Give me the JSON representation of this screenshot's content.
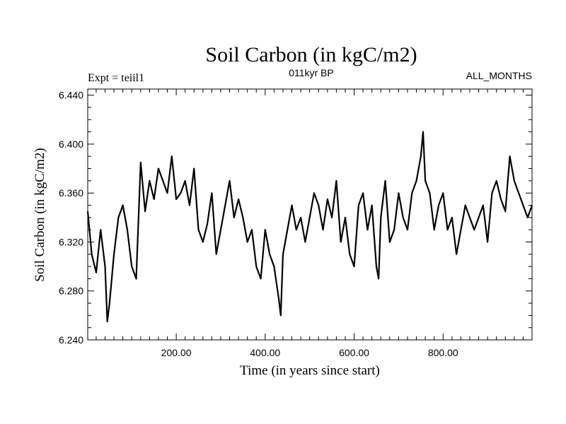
{
  "header": {
    "title": "Soil Carbon (in kgC/m2)",
    "experiment": "Expt = teiil1",
    "period": "011kyr BP",
    "months": "ALL_MONTHS"
  },
  "chart_data": {
    "type": "line",
    "title": "Soil Carbon (in kgC/m2)",
    "xlabel": "Time (in years since start)",
    "ylabel": "Soil Carbon (in kgC/m2)",
    "xlim": [
      1,
      1000
    ],
    "ylim": [
      6.24,
      6.445
    ],
    "x_ticks": [
      200,
      400,
      600,
      800
    ],
    "x_tick_labels": [
      "200.00",
      "400.00",
      "600.00",
      "800.00"
    ],
    "y_ticks": [
      6.24,
      6.28,
      6.32,
      6.36,
      6.4,
      6.44
    ],
    "y_tick_labels": [
      "6.240",
      "6.280",
      "6.320",
      "6.360",
      "6.400",
      "6.440"
    ],
    "grid": false,
    "line_color": "#000000",
    "series": [
      {
        "x": [
          1,
          10,
          20,
          30,
          40,
          45,
          50,
          60,
          70,
          80,
          90,
          100,
          110,
          120,
          130,
          140,
          150,
          160,
          170,
          180,
          190,
          200,
          210,
          220,
          230,
          240,
          250,
          260,
          270,
          280,
          290,
          300,
          310,
          320,
          330,
          340,
          350,
          360,
          370,
          380,
          390,
          400,
          410,
          420,
          430,
          435,
          440,
          450,
          460,
          470,
          480,
          490,
          500,
          510,
          520,
          530,
          540,
          550,
          560,
          570,
          580,
          590,
          600,
          610,
          620,
          630,
          640,
          650,
          655,
          660,
          670,
          680,
          690,
          700,
          710,
          720,
          730,
          740,
          750,
          755,
          760,
          770,
          780,
          790,
          800,
          810,
          820,
          830,
          840,
          850,
          860,
          870,
          880,
          890,
          900,
          910,
          920,
          930,
          940,
          950,
          960,
          970,
          980,
          990,
          1000
        ],
        "values": [
          6.345,
          6.31,
          6.295,
          6.33,
          6.3,
          6.255,
          6.27,
          6.31,
          6.34,
          6.35,
          6.33,
          6.3,
          6.29,
          6.385,
          6.345,
          6.37,
          6.355,
          6.38,
          6.37,
          6.36,
          6.39,
          6.355,
          6.36,
          6.37,
          6.35,
          6.38,
          6.33,
          6.32,
          6.335,
          6.36,
          6.31,
          6.33,
          6.35,
          6.37,
          6.34,
          6.355,
          6.34,
          6.32,
          6.33,
          6.3,
          6.29,
          6.33,
          6.31,
          6.3,
          6.275,
          6.26,
          6.31,
          6.33,
          6.35,
          6.33,
          6.34,
          6.32,
          6.34,
          6.36,
          6.35,
          6.33,
          6.355,
          6.34,
          6.37,
          6.32,
          6.34,
          6.31,
          6.3,
          6.35,
          6.36,
          6.33,
          6.35,
          6.3,
          6.29,
          6.34,
          6.37,
          6.32,
          6.33,
          6.36,
          6.34,
          6.33,
          6.36,
          6.37,
          6.39,
          6.41,
          6.37,
          6.36,
          6.33,
          6.35,
          6.36,
          6.33,
          6.34,
          6.31,
          6.33,
          6.35,
          6.34,
          6.33,
          6.34,
          6.35,
          6.32,
          6.36,
          6.37,
          6.355,
          6.345,
          6.39,
          6.37,
          6.36,
          6.35,
          6.34,
          6.35
        ]
      }
    ]
  }
}
